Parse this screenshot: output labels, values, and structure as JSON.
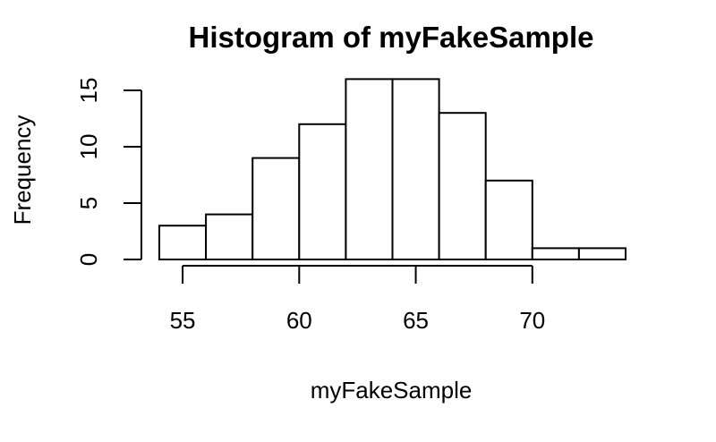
{
  "chart_data": {
    "type": "bar",
    "title": "Histogram of myFakeSample",
    "xlabel": "myFakeSample",
    "ylabel": "Frequency",
    "bins": [
      {
        "start": 54,
        "end": 56,
        "count": 3
      },
      {
        "start": 56,
        "end": 58,
        "count": 4
      },
      {
        "start": 58,
        "end": 60,
        "count": 9
      },
      {
        "start": 60,
        "end": 62,
        "count": 12
      },
      {
        "start": 62,
        "end": 64,
        "count": 16
      },
      {
        "start": 64,
        "end": 66,
        "count": 16
      },
      {
        "start": 66,
        "end": 68,
        "count": 13
      },
      {
        "start": 68,
        "end": 70,
        "count": 7
      },
      {
        "start": 70,
        "end": 72,
        "count": 1
      },
      {
        "start": 72,
        "end": 74,
        "count": 1
      }
    ],
    "x_ticks": [
      "55",
      "60",
      "65",
      "70"
    ],
    "y_ticks": [
      "0",
      "5",
      "10",
      "15"
    ],
    "x_axis_range": [
      55,
      70
    ],
    "y_axis_range": [
      0,
      15
    ],
    "grid": false,
    "legend": "none"
  }
}
